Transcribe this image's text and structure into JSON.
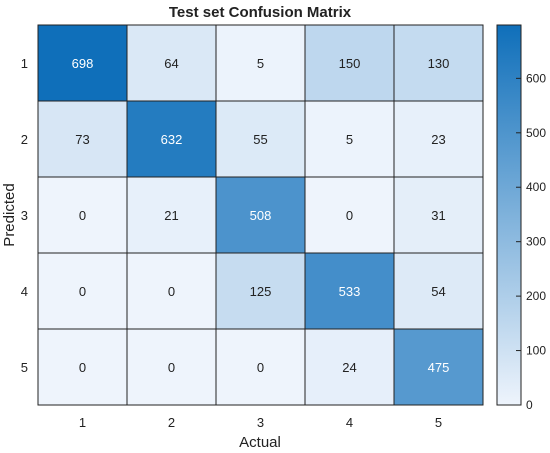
{
  "chart_data": {
    "type": "heatmap",
    "title": "Test set Confusion Matrix",
    "xlabel": "Actual",
    "ylabel": "Predicted",
    "x_categories": [
      "1",
      "2",
      "3",
      "4",
      "5"
    ],
    "y_categories": [
      "1",
      "2",
      "3",
      "4",
      "5"
    ],
    "values": [
      [
        698,
        64,
        5,
        150,
        130
      ],
      [
        73,
        632,
        55,
        5,
        23
      ],
      [
        0,
        21,
        508,
        0,
        31
      ],
      [
        0,
        0,
        125,
        533,
        54
      ],
      [
        0,
        0,
        0,
        24,
        475
      ]
    ],
    "colorbar": {
      "range": [
        0,
        698
      ],
      "ticks": [
        0,
        100,
        200,
        300,
        400,
        500,
        600
      ],
      "colormap": [
        "#eef4fc",
        "#0f6fba"
      ]
    }
  }
}
